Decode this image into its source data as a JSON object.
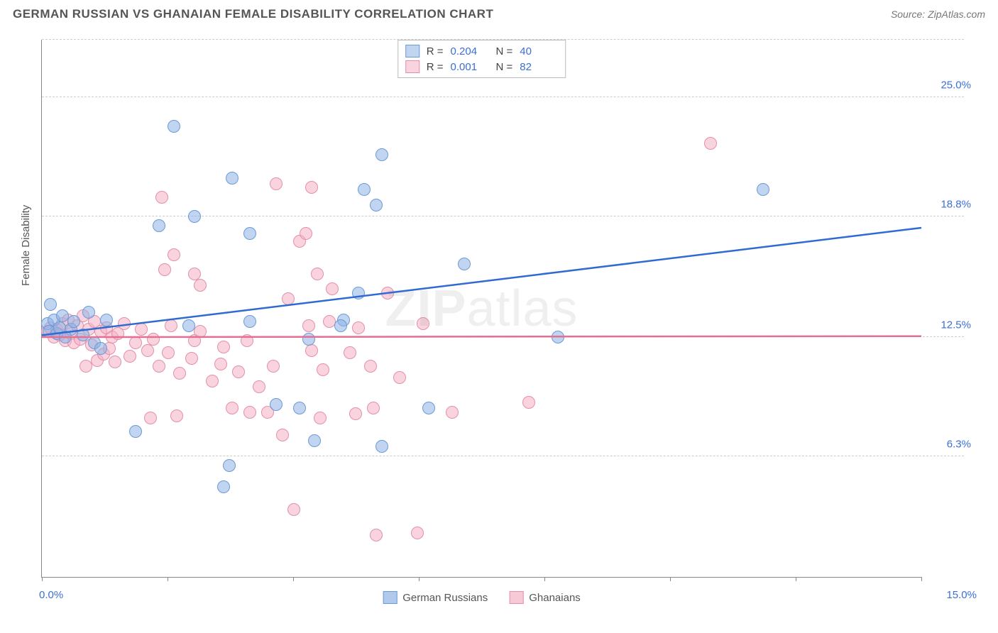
{
  "title": "GERMAN RUSSIAN VS GHANAIAN FEMALE DISABILITY CORRELATION CHART",
  "source": "Source: ZipAtlas.com",
  "watermark_zip": "ZIP",
  "watermark_atlas": "atlas",
  "chart": {
    "type": "scatter",
    "y_axis_title": "Female Disability",
    "xlim": [
      0,
      15
    ],
    "ylim": [
      0,
      28
    ],
    "x_ticks": [
      0,
      2.14,
      4.29,
      6.43,
      8.57,
      10.71,
      12.86,
      15
    ],
    "x_range_labels": {
      "min": "0.0%",
      "max": "15.0%"
    },
    "y_grid": [
      {
        "value": 6.3,
        "label": "6.3%"
      },
      {
        "value": 12.5,
        "label": "12.5%"
      },
      {
        "value": 18.8,
        "label": "18.8%"
      },
      {
        "value": 25.0,
        "label": "25.0%"
      },
      {
        "value": 28.0,
        "label": ""
      }
    ],
    "grid_color": "#cccccc",
    "background_color": "#ffffff",
    "marker_radius": 9,
    "marker_border_width": 1.2,
    "line_width": 2.5,
    "series": [
      {
        "name": "German Russians",
        "fill_color": "rgba(142,179,230,0.55)",
        "border_color": "#6a9ad8",
        "line_color": "#2f6bd0",
        "trend": {
          "x1": 0,
          "y1": 12.6,
          "x2": 15,
          "y2": 18.2
        },
        "R": "0.204",
        "N": "40",
        "points": [
          [
            0.1,
            13.2
          ],
          [
            0.12,
            12.8
          ],
          [
            0.2,
            13.4
          ],
          [
            0.25,
            12.7
          ],
          [
            0.3,
            13.0
          ],
          [
            0.35,
            13.6
          ],
          [
            0.5,
            12.9
          ],
          [
            0.55,
            13.3
          ],
          [
            0.15,
            14.2
          ],
          [
            0.4,
            12.5
          ],
          [
            1.1,
            13.4
          ],
          [
            0.9,
            12.2
          ],
          [
            2.0,
            18.3
          ],
          [
            2.25,
            23.5
          ],
          [
            2.5,
            13.1
          ],
          [
            2.6,
            18.8
          ],
          [
            1.6,
            7.6
          ],
          [
            3.25,
            20.8
          ],
          [
            3.2,
            5.8
          ],
          [
            3.1,
            4.7
          ],
          [
            3.55,
            13.3
          ],
          [
            3.55,
            17.9
          ],
          [
            4.0,
            9.0
          ],
          [
            4.4,
            8.8
          ],
          [
            4.65,
            7.1
          ],
          [
            4.55,
            12.4
          ],
          [
            5.15,
            13.4
          ],
          [
            5.1,
            13.1
          ],
          [
            5.5,
            20.2
          ],
          [
            5.8,
            22.0
          ],
          [
            5.7,
            19.4
          ],
          [
            5.8,
            6.8
          ],
          [
            6.6,
            8.8
          ],
          [
            7.2,
            16.3
          ],
          [
            8.8,
            12.5
          ],
          [
            12.3,
            20.2
          ],
          [
            0.7,
            12.6
          ],
          [
            0.8,
            13.8
          ],
          [
            1.0,
            11.9
          ],
          [
            5.4,
            14.8
          ]
        ]
      },
      {
        "name": "Ghanaians",
        "fill_color": "rgba(244,176,196,0.55)",
        "border_color": "#e48faa",
        "line_color": "#e36f93",
        "trend": {
          "x1": 0,
          "y1": 12.5,
          "x2": 15,
          "y2": 12.55
        },
        "R": "0.001",
        "N": "82",
        "points": [
          [
            0.1,
            12.8
          ],
          [
            0.15,
            13.0
          ],
          [
            0.2,
            12.5
          ],
          [
            0.25,
            12.9
          ],
          [
            0.3,
            12.6
          ],
          [
            0.35,
            13.2
          ],
          [
            0.4,
            12.3
          ],
          [
            0.45,
            13.4
          ],
          [
            0.5,
            12.7
          ],
          [
            0.55,
            12.2
          ],
          [
            0.6,
            13.1
          ],
          [
            0.65,
            12.4
          ],
          [
            0.7,
            13.6
          ],
          [
            0.75,
            11.0
          ],
          [
            0.8,
            12.9
          ],
          [
            0.85,
            12.1
          ],
          [
            0.9,
            13.3
          ],
          [
            0.95,
            11.3
          ],
          [
            1.0,
            12.8
          ],
          [
            1.05,
            11.6
          ],
          [
            1.1,
            13.0
          ],
          [
            1.15,
            11.9
          ],
          [
            1.2,
            12.5
          ],
          [
            1.25,
            11.2
          ],
          [
            1.3,
            12.7
          ],
          [
            1.4,
            13.2
          ],
          [
            1.5,
            11.5
          ],
          [
            1.6,
            12.2
          ],
          [
            1.7,
            12.9
          ],
          [
            1.8,
            11.8
          ],
          [
            1.85,
            8.3
          ],
          [
            2.05,
            19.8
          ],
          [
            2.1,
            16.0
          ],
          [
            2.15,
            11.7
          ],
          [
            2.2,
            13.1
          ],
          [
            2.25,
            16.8
          ],
          [
            2.3,
            8.4
          ],
          [
            2.35,
            10.6
          ],
          [
            2.55,
            11.4
          ],
          [
            2.6,
            15.8
          ],
          [
            2.6,
            12.3
          ],
          [
            2.7,
            15.2
          ],
          [
            2.7,
            12.8
          ],
          [
            2.9,
            10.2
          ],
          [
            3.05,
            11.1
          ],
          [
            3.1,
            12.0
          ],
          [
            3.25,
            8.8
          ],
          [
            3.35,
            10.7
          ],
          [
            3.5,
            12.3
          ],
          [
            3.55,
            8.6
          ],
          [
            3.7,
            9.9
          ],
          [
            3.85,
            8.6
          ],
          [
            3.95,
            11.0
          ],
          [
            4.0,
            20.5
          ],
          [
            4.1,
            7.4
          ],
          [
            4.2,
            14.5
          ],
          [
            4.3,
            3.5
          ],
          [
            4.4,
            17.5
          ],
          [
            4.5,
            17.9
          ],
          [
            4.55,
            13.1
          ],
          [
            4.6,
            11.8
          ],
          [
            4.6,
            20.3
          ],
          [
            4.7,
            15.8
          ],
          [
            4.75,
            8.3
          ],
          [
            4.8,
            10.8
          ],
          [
            4.9,
            13.3
          ],
          [
            4.95,
            15.0
          ],
          [
            5.25,
            11.7
          ],
          [
            5.35,
            8.5
          ],
          [
            5.4,
            13.0
          ],
          [
            5.6,
            11.0
          ],
          [
            5.65,
            8.8
          ],
          [
            5.7,
            2.2
          ],
          [
            5.9,
            14.8
          ],
          [
            6.1,
            10.4
          ],
          [
            6.4,
            2.3
          ],
          [
            6.5,
            13.2
          ],
          [
            7.0,
            8.6
          ],
          [
            8.3,
            9.1
          ],
          [
            11.4,
            22.6
          ],
          [
            1.9,
            12.4
          ],
          [
            2.0,
            11.0
          ]
        ]
      }
    ]
  },
  "bottom_legend": [
    {
      "label": "German Russians",
      "fill": "rgba(142,179,230,0.7)",
      "border": "#6a9ad8"
    },
    {
      "label": "Ghanaians",
      "fill": "rgba(244,176,196,0.7)",
      "border": "#e48faa"
    }
  ]
}
